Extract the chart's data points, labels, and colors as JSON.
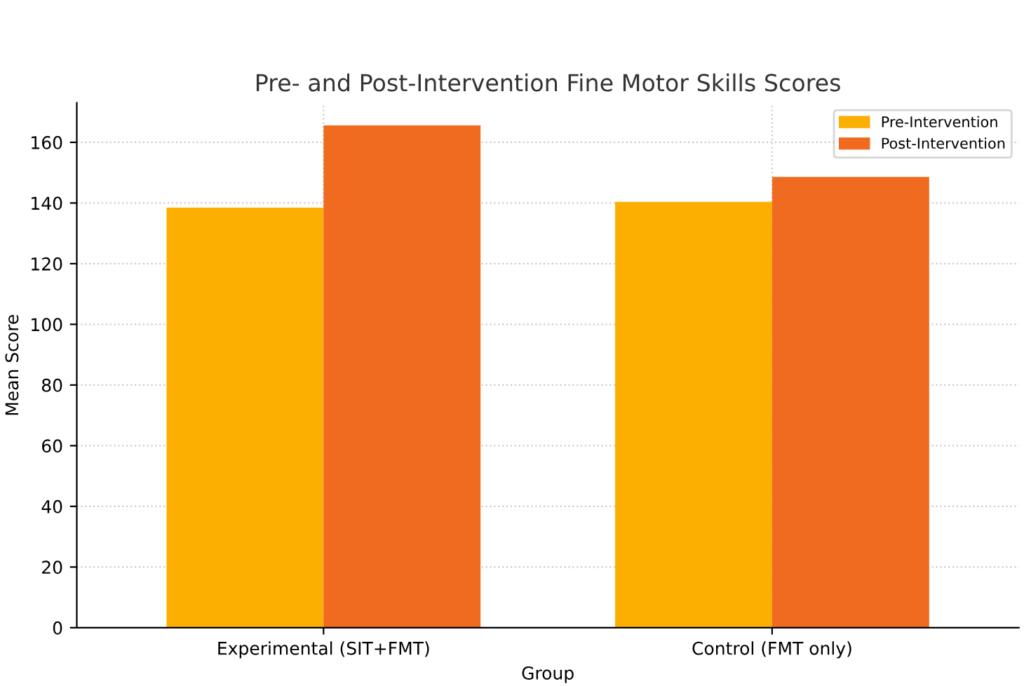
{
  "chart_data": {
    "type": "bar",
    "title": "Pre- and Post-Intervention Fine Motor Skills Scores",
    "xlabel": "Group",
    "ylabel": "Mean Score",
    "categories": [
      "Experimental (SIT+FMT)",
      "Control (FMT only)"
    ],
    "series": [
      {
        "name": "Pre-Intervention",
        "color": "#fcaf00",
        "values": [
          138.5,
          140.4
        ]
      },
      {
        "name": "Post-Intervention",
        "color": "#f06a20",
        "values": [
          165.6,
          148.6
        ]
      }
    ],
    "ylim": [
      0,
      173
    ],
    "yticks": [
      0,
      20,
      40,
      60,
      80,
      100,
      120,
      140,
      160
    ],
    "grid": true,
    "legend": "top right"
  }
}
